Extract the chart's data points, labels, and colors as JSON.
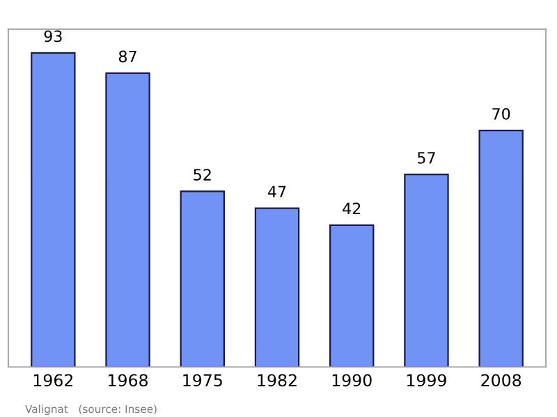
{
  "chart_data": {
    "type": "bar",
    "categories": [
      "1962",
      "1968",
      "1975",
      "1982",
      "1990",
      "1999",
      "2008"
    ],
    "values": [
      93,
      87,
      52,
      47,
      42,
      57,
      70
    ],
    "color": "#7093f5",
    "data_labels": true,
    "ylim": [
      0,
      100
    ],
    "grid": false,
    "legend": false,
    "annotations": [
      "Valignat   (source: Insee)"
    ]
  }
}
